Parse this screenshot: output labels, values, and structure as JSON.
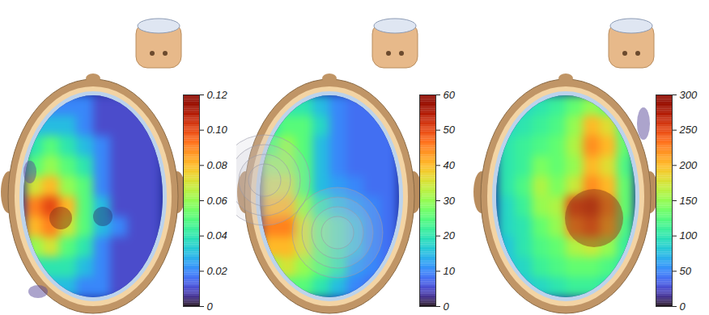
{
  "chart_data": [
    {
      "type": "heatmap",
      "colorbar_lim": [
        0,
        0.12
      ],
      "colorbar_ticks": [
        0,
        0.02,
        0.04,
        0.06,
        0.08,
        {
          "value": 0.1,
          "label": "0.10"
        },
        0.12
      ],
      "cells": [
        [
          0.02,
          0.02,
          0.02,
          0.02,
          0.01,
          0.01,
          0.01,
          0.01
        ],
        [
          0.03,
          0.03,
          0.03,
          0.02,
          0.01,
          0.01,
          0.01,
          0.01
        ],
        [
          0.04,
          0.05,
          0.04,
          0.03,
          0.02,
          0.01,
          0.01,
          0.01
        ],
        [
          0.05,
          0.06,
          0.05,
          0.04,
          0.02,
          0.01,
          0.01,
          0.01
        ],
        [
          0.07,
          0.08,
          0.06,
          0.05,
          0.02,
          0.01,
          0.01,
          0.01
        ],
        [
          0.09,
          0.1,
          0.08,
          0.05,
          0.03,
          0.01,
          0.01,
          0.01
        ],
        [
          0.08,
          0.09,
          0.07,
          0.05,
          0.03,
          0.02,
          0.01,
          0.01
        ],
        [
          0.06,
          0.07,
          0.05,
          0.04,
          0.02,
          0.01,
          0.01,
          0.01
        ],
        [
          0.04,
          0.04,
          0.04,
          0.03,
          0.02,
          0.01,
          0.01,
          0.01
        ],
        [
          0.02,
          0.03,
          0.03,
          0.02,
          0.02,
          0.01,
          0.01,
          0.01
        ]
      ]
    },
    {
      "type": "heatmap",
      "colorbar_lim": [
        0,
        60
      ],
      "colorbar_ticks": [
        0,
        10,
        20,
        30,
        40,
        50,
        60
      ],
      "cells": [
        [
          15,
          20,
          20,
          15,
          10,
          8,
          8,
          8
        ],
        [
          20,
          25,
          25,
          18,
          10,
          8,
          8,
          8
        ],
        [
          25,
          30,
          25,
          15,
          10,
          8,
          8,
          8
        ],
        [
          30,
          30,
          25,
          15,
          10,
          8,
          8,
          8
        ],
        [
          35,
          35,
          25,
          15,
          12,
          10,
          8,
          8
        ],
        [
          40,
          40,
          30,
          20,
          15,
          12,
          10,
          8
        ],
        [
          45,
          45,
          35,
          25,
          20,
          15,
          10,
          8
        ],
        [
          40,
          40,
          35,
          25,
          20,
          15,
          10,
          8
        ],
        [
          30,
          35,
          30,
          25,
          20,
          12,
          10,
          8
        ],
        [
          20,
          25,
          25,
          20,
          15,
          10,
          8,
          8
        ]
      ]
    },
    {
      "type": "heatmap",
      "colorbar_lim": [
        0,
        300
      ],
      "colorbar_ticks": [
        0,
        50,
        100,
        150,
        200,
        250,
        300
      ],
      "cells": [
        [
          80,
          90,
          100,
          110,
          130,
          150,
          130,
          100
        ],
        [
          90,
          100,
          110,
          120,
          150,
          200,
          180,
          120
        ],
        [
          100,
          110,
          120,
          130,
          160,
          220,
          200,
          130
        ],
        [
          100,
          110,
          140,
          130,
          150,
          200,
          180,
          120
        ],
        [
          100,
          120,
          160,
          140,
          170,
          220,
          200,
          130
        ],
        [
          90,
          110,
          150,
          160,
          250,
          260,
          220,
          130
        ],
        [
          90,
          100,
          130,
          150,
          220,
          240,
          200,
          120
        ],
        [
          80,
          100,
          120,
          130,
          160,
          170,
          150,
          110
        ],
        [
          80,
          90,
          110,
          120,
          130,
          130,
          120,
          100
        ],
        [
          70,
          80,
          90,
          100,
          110,
          110,
          100,
          90
        ]
      ]
    }
  ]
}
